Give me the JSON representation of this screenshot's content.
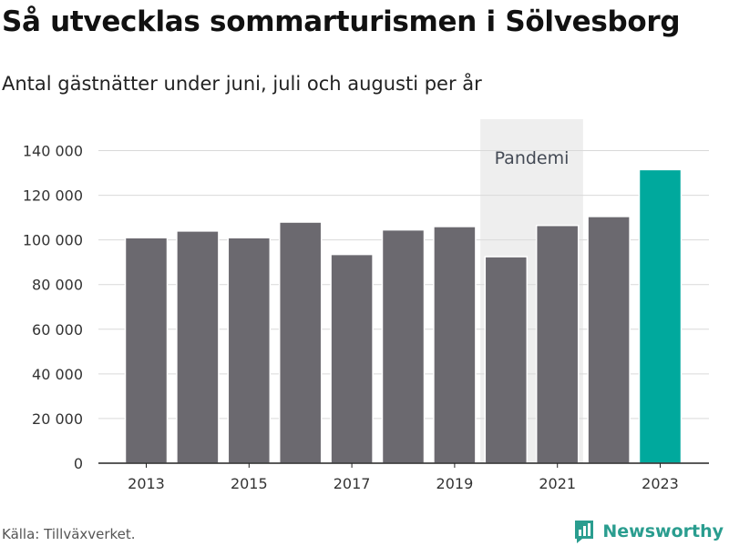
{
  "header": {
    "title": "Så utvecklas sommarturismen i Sölvesborg",
    "subtitle": "Antal gästnätter under juni, juli och augusti per år"
  },
  "footer": {
    "source": "Källa: Tillväxverket.",
    "brand": "Newsworthy"
  },
  "colors": {
    "bar": "#6b696f",
    "highlight": "#00a99d",
    "band": "#eeeeee",
    "grid": "#d9d9d9",
    "brand": "#2a9d8f"
  },
  "chart_data": {
    "type": "bar",
    "categories": [
      "2013",
      "2014",
      "2015",
      "2016",
      "2017",
      "2018",
      "2019",
      "2020",
      "2021",
      "2022",
      "2023"
    ],
    "values": [
      101000,
      104000,
      101000,
      108000,
      93500,
      104500,
      106000,
      92500,
      106500,
      110500,
      131500
    ],
    "highlight_category": "2023",
    "x_tick_labels": [
      "2013",
      "2015",
      "2017",
      "2019",
      "2021",
      "2023"
    ],
    "y_ticks": [
      0,
      20000,
      40000,
      60000,
      80000,
      100000,
      120000,
      140000
    ],
    "y_tick_labels": [
      "0",
      "20 000",
      "40 000",
      "60 000",
      "80 000",
      "100 000",
      "120 000",
      "140 000"
    ],
    "ylim": [
      0,
      150000
    ],
    "grid": true,
    "annotation": {
      "label": "Pandemi",
      "categories": [
        "2020",
        "2021"
      ]
    }
  }
}
